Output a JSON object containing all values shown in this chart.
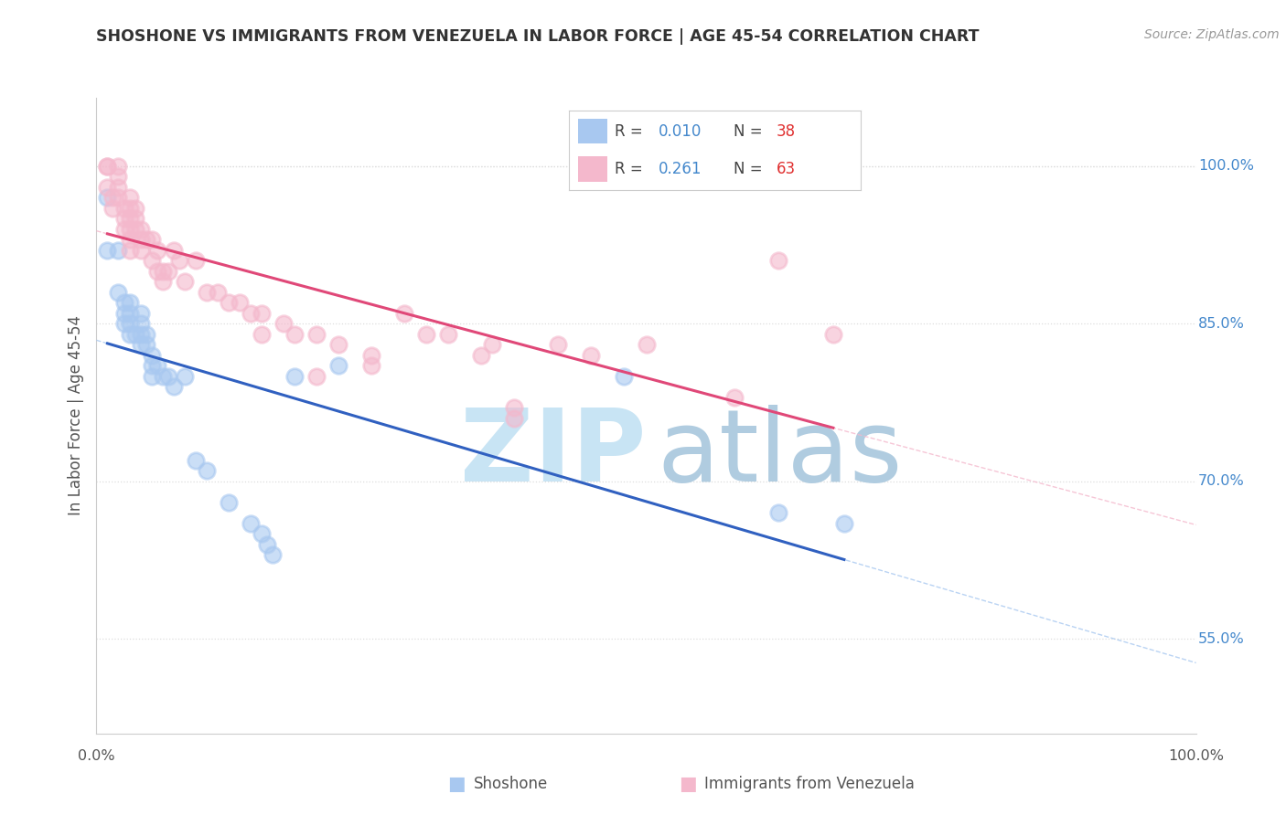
{
  "title": "SHOSHONE VS IMMIGRANTS FROM VENEZUELA IN LABOR FORCE | AGE 45-54 CORRELATION CHART",
  "source": "Source: ZipAtlas.com",
  "ylabel": "In Labor Force | Age 45-54",
  "xlim": [
    0.0,
    1.0
  ],
  "ylim": [
    0.46,
    1.065
  ],
  "yticks": [
    0.55,
    0.7,
    0.85,
    1.0
  ],
  "ytick_labels": [
    "55.0%",
    "70.0%",
    "85.0%",
    "100.0%"
  ],
  "legend_R_shoshone": "0.010",
  "legend_N_shoshone": "38",
  "legend_R_venezuela": "0.261",
  "legend_N_venezuela": "63",
  "shoshone_color": "#a8c8f0",
  "venezuela_color": "#f4b8cc",
  "shoshone_edge_color": "#7aaade",
  "venezuela_edge_color": "#e888aa",
  "shoshone_line_color": "#3060c0",
  "venezuela_line_color": "#e04878",
  "shoshone_scatter_x": [
    0.01,
    0.01,
    0.02,
    0.02,
    0.025,
    0.025,
    0.025,
    0.03,
    0.03,
    0.03,
    0.03,
    0.035,
    0.04,
    0.04,
    0.04,
    0.04,
    0.045,
    0.045,
    0.05,
    0.05,
    0.05,
    0.055,
    0.06,
    0.065,
    0.07,
    0.08,
    0.09,
    0.1,
    0.12,
    0.14,
    0.15,
    0.155,
    0.16,
    0.18,
    0.22,
    0.48,
    0.62,
    0.68
  ],
  "shoshone_scatter_y": [
    0.97,
    0.92,
    0.92,
    0.88,
    0.87,
    0.86,
    0.85,
    0.87,
    0.86,
    0.85,
    0.84,
    0.84,
    0.86,
    0.85,
    0.84,
    0.83,
    0.84,
    0.83,
    0.82,
    0.81,
    0.8,
    0.81,
    0.8,
    0.8,
    0.79,
    0.8,
    0.72,
    0.71,
    0.68,
    0.66,
    0.65,
    0.64,
    0.63,
    0.8,
    0.81,
    0.8,
    0.67,
    0.66
  ],
  "venezuela_scatter_x": [
    0.01,
    0.01,
    0.01,
    0.015,
    0.015,
    0.02,
    0.02,
    0.02,
    0.02,
    0.025,
    0.025,
    0.025,
    0.03,
    0.03,
    0.03,
    0.03,
    0.03,
    0.03,
    0.035,
    0.035,
    0.035,
    0.04,
    0.04,
    0.04,
    0.045,
    0.05,
    0.05,
    0.055,
    0.055,
    0.06,
    0.06,
    0.065,
    0.07,
    0.075,
    0.08,
    0.09,
    0.1,
    0.11,
    0.12,
    0.13,
    0.14,
    0.15,
    0.17,
    0.18,
    0.2,
    0.22,
    0.25,
    0.28,
    0.32,
    0.36,
    0.38,
    0.42,
    0.45,
    0.5,
    0.58,
    0.62,
    0.67,
    0.38,
    0.15,
    0.2,
    0.25,
    0.3,
    0.35
  ],
  "venezuela_scatter_y": [
    1.0,
    1.0,
    0.98,
    0.97,
    0.96,
    1.0,
    0.99,
    0.98,
    0.97,
    0.96,
    0.95,
    0.94,
    0.97,
    0.96,
    0.95,
    0.94,
    0.93,
    0.92,
    0.96,
    0.95,
    0.94,
    0.94,
    0.93,
    0.92,
    0.93,
    0.93,
    0.91,
    0.92,
    0.9,
    0.9,
    0.89,
    0.9,
    0.92,
    0.91,
    0.89,
    0.91,
    0.88,
    0.88,
    0.87,
    0.87,
    0.86,
    0.86,
    0.85,
    0.84,
    0.84,
    0.83,
    0.82,
    0.86,
    0.84,
    0.83,
    0.77,
    0.83,
    0.82,
    0.83,
    0.78,
    0.91,
    0.84,
    0.76,
    0.84,
    0.8,
    0.81,
    0.84,
    0.82
  ],
  "background_color": "#ffffff",
  "watermark_zip_color": "#c8e4f4",
  "watermark_atlas_color": "#b0cce0",
  "grid_color": "#dddddd",
  "spine_color": "#cccccc"
}
